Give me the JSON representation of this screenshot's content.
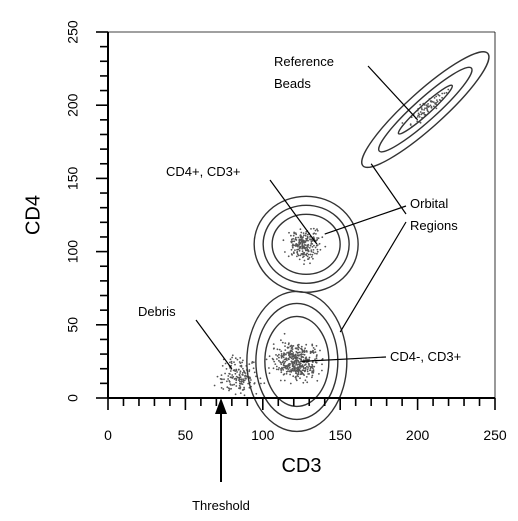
{
  "chart_data": {
    "type": "scatter",
    "xlabel": "CD3",
    "ylabel": "CD4",
    "xlim": [
      0,
      250
    ],
    "ylim": [
      0,
      250
    ],
    "x_ticks": [
      "0",
      "50",
      "100",
      "150",
      "200",
      "250"
    ],
    "y_ticks": [
      "0",
      "50",
      "100",
      "150",
      "200",
      "250"
    ],
    "grid": false,
    "clusters": [
      {
        "id": "reference-beads",
        "center": [
          205,
          197
        ],
        "orientation_deg": 42
      },
      {
        "id": "cd4-cd3",
        "center": [
          128,
          105
        ]
      },
      {
        "id": "cd4neg-cd3",
        "center": [
          122,
          25
        ]
      },
      {
        "id": "debris",
        "center": [
          85,
          15
        ]
      }
    ],
    "annotations": [
      {
        "id": "reference-beads",
        "lines": [
          "Reference",
          "Beads"
        ],
        "points_to": [
          200,
          190
        ]
      },
      {
        "id": "cd4pos-cd3pos",
        "lines": [
          "CD4+, CD3+"
        ],
        "points_to": [
          135,
          105
        ]
      },
      {
        "id": "orbital-regions",
        "lines": [
          "Orbital",
          "Regions"
        ],
        "points_to_regions": [
          [
            140,
            112
          ],
          [
            170,
            160
          ],
          [
            150,
            45
          ]
        ]
      },
      {
        "id": "debris",
        "lines": [
          "Debris"
        ],
        "points_to": [
          80,
          20
        ]
      },
      {
        "id": "cd4neg-cd3pos",
        "lines": [
          "CD4-, CD3+"
        ],
        "points_to": [
          125,
          25
        ]
      }
    ],
    "threshold": {
      "label": "Threshold",
      "x": 73
    }
  }
}
